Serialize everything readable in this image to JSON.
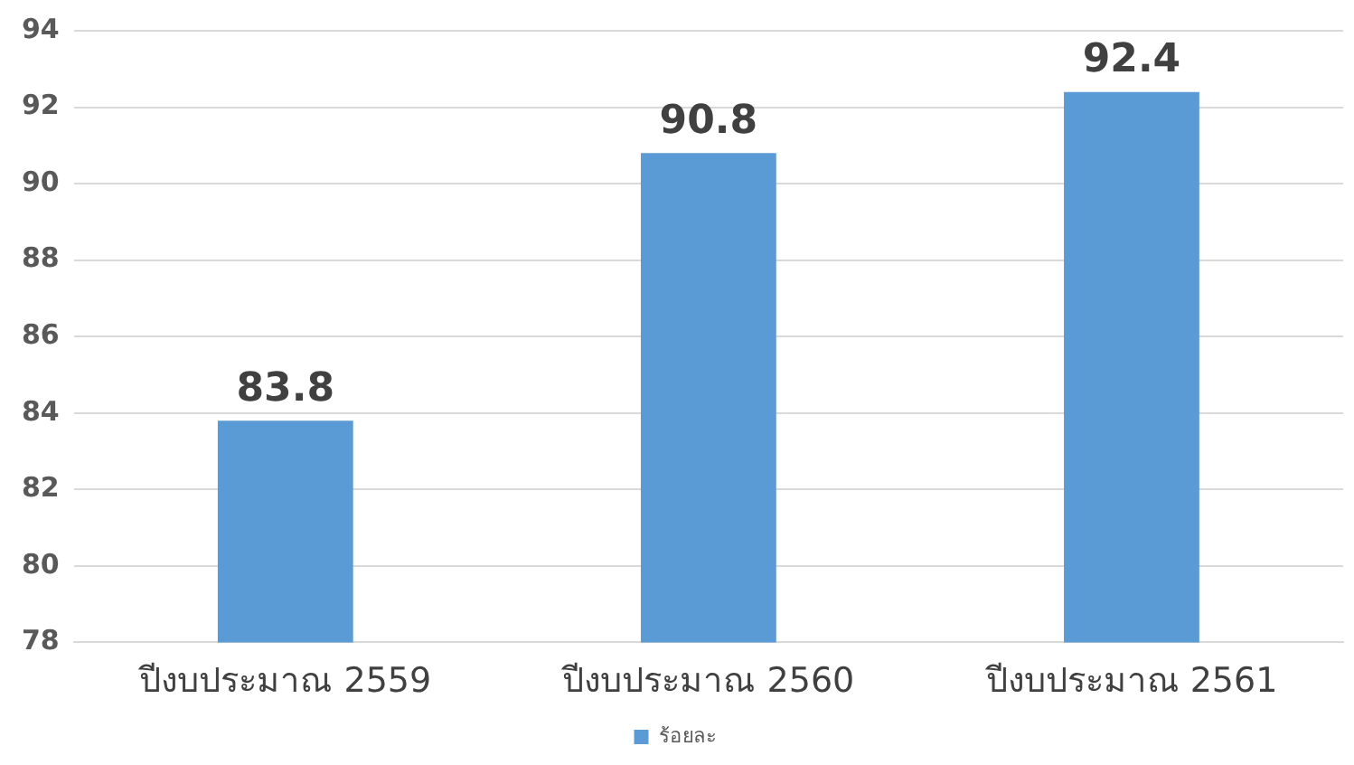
{
  "chart_data": {
    "type": "bar",
    "categories": [
      "ปีงบประมาณ 2559",
      "ปีงบประมาณ 2560",
      "ปีงบประมาณ 2561"
    ],
    "series": [
      {
        "name": "ร้อยละ",
        "color": "#5b9bd5",
        "values": [
          83.8,
          90.8,
          92.4
        ]
      }
    ],
    "ylim": [
      78,
      94
    ],
    "yticks": [
      78,
      80,
      82,
      84,
      86,
      88,
      90,
      92,
      94
    ],
    "grid": "y",
    "legend": "bottom",
    "data_labels": true
  }
}
